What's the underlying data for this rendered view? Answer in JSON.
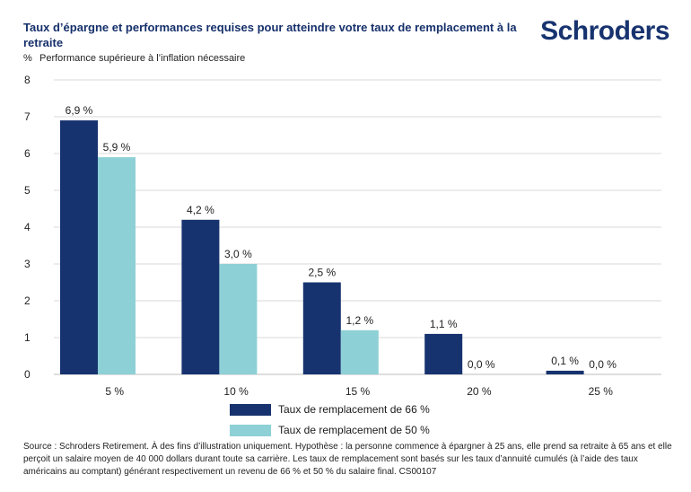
{
  "title": "Taux d’épargne et performances requises pour atteindre votre taux de remplacement à la retraite",
  "brand": "Schroders",
  "ylabel_unit": "%",
  "ylabel": "Performance supérieure à l’inflation nécessaire",
  "source": "Source : Schroders Retirement. À des fins d’illustration uniquement. Hypothèse : la personne commence à épargner à 25 ans, elle prend sa retraite à 65 ans et elle perçoit un salaire moyen de 40 000 dollars durant toute sa carrière. Les taux de remplacement sont basés sur les taux d’annuité cumulés (à l’aide des taux américains au comptant) générant respectivement un revenu de 66 % et 50 % du salaire final. CS00107",
  "chart_data": {
    "type": "bar",
    "categories": [
      "5 %",
      "10 %",
      "15 %",
      "20 %",
      "25 %"
    ],
    "series": [
      {
        "name": "Taux de remplacement de 66 %",
        "values": [
          6.9,
          4.2,
          2.5,
          1.1,
          0.1
        ],
        "labels": [
          "6,9 %",
          "4,2 %",
          "2,5 %",
          "1,1 %",
          "0,1 %"
        ],
        "color": "#17336f"
      },
      {
        "name": "Taux de remplacement de 50 %",
        "values": [
          5.9,
          3.0,
          1.2,
          0.0,
          0.0
        ],
        "labels": [
          "5,9 %",
          "3,0 %",
          "1,2 %",
          "0,0 %",
          "0,0 %"
        ],
        "color": "#8dd0d6"
      }
    ],
    "ylim": [
      0,
      8
    ],
    "yticks": [
      "0",
      "1",
      "2",
      "3",
      "4",
      "5",
      "6",
      "7",
      "8"
    ],
    "grid": true,
    "legend_position": "bottom-center"
  }
}
